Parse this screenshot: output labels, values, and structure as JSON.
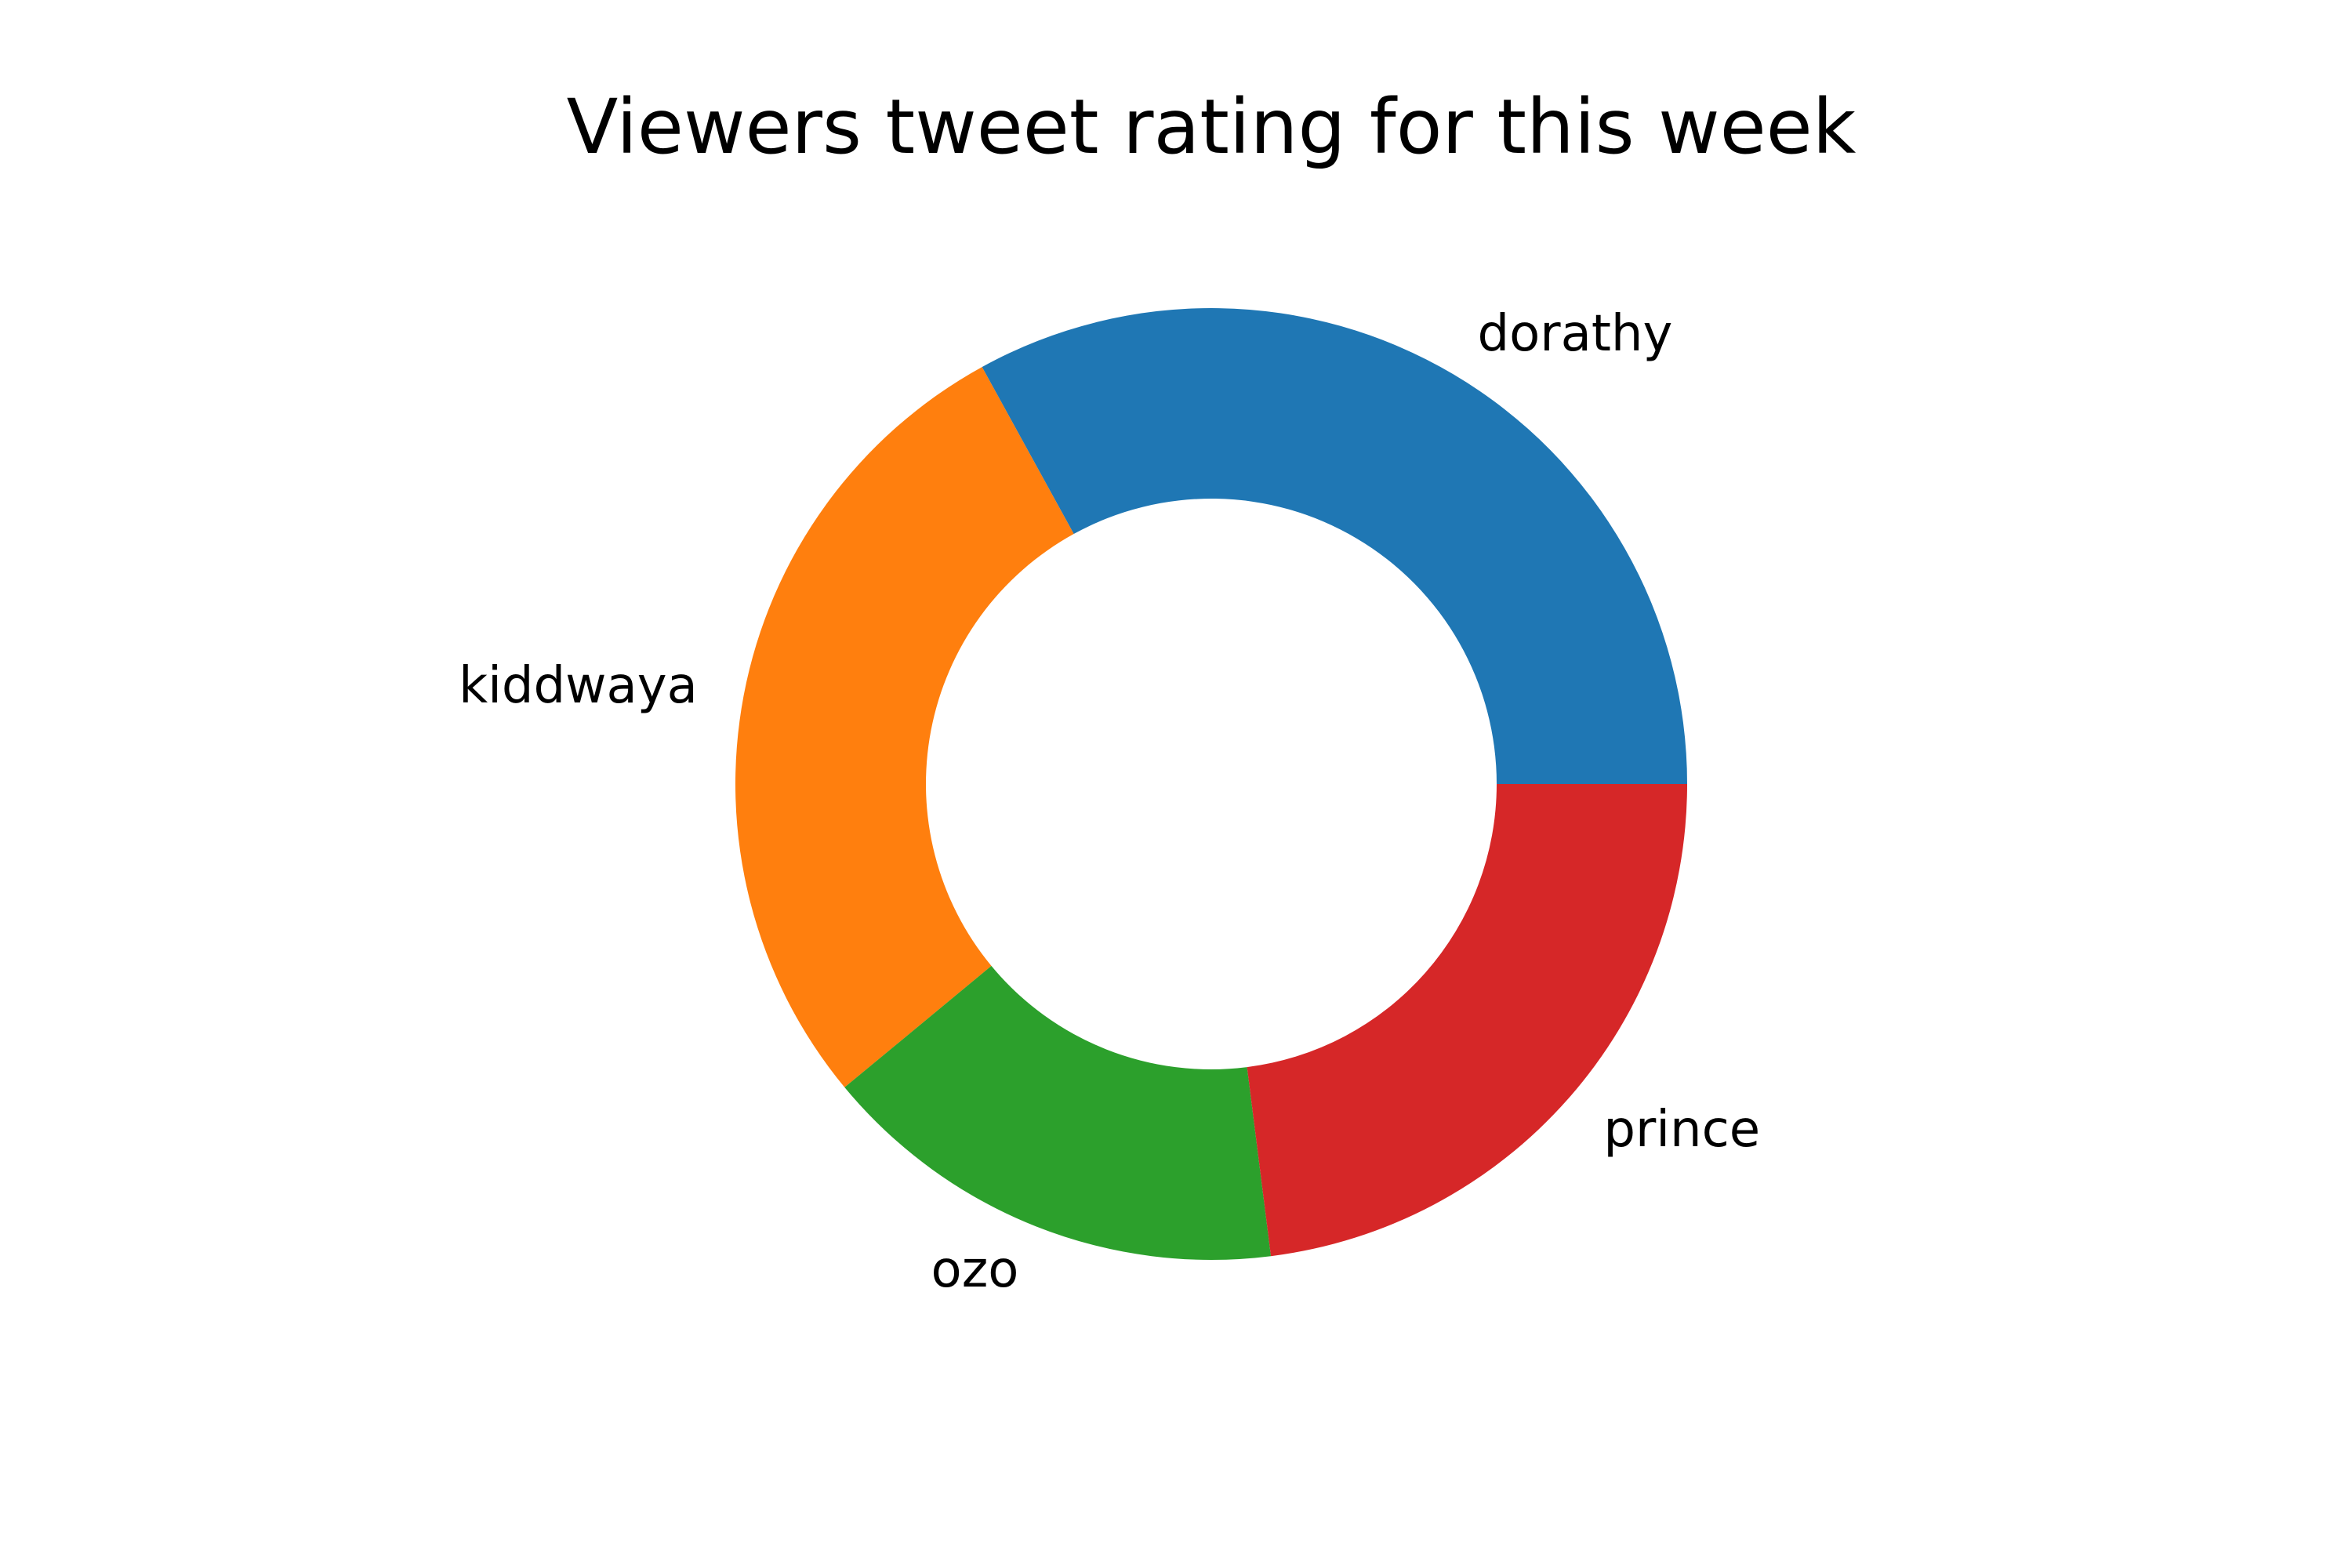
{
  "chart_data": {
    "type": "pie",
    "title": "Viewers tweet rating for this week",
    "donut": true,
    "start_angle": 0,
    "direction": "counterclockwise",
    "legend": "none",
    "categories": [
      "dorathy",
      "kiddwaya",
      "ozo",
      "prince"
    ],
    "values": [
      33,
      28,
      16,
      23
    ],
    "colors": [
      "#1f77b4",
      "#ff7f0e",
      "#2ca02c",
      "#d62728"
    ]
  }
}
